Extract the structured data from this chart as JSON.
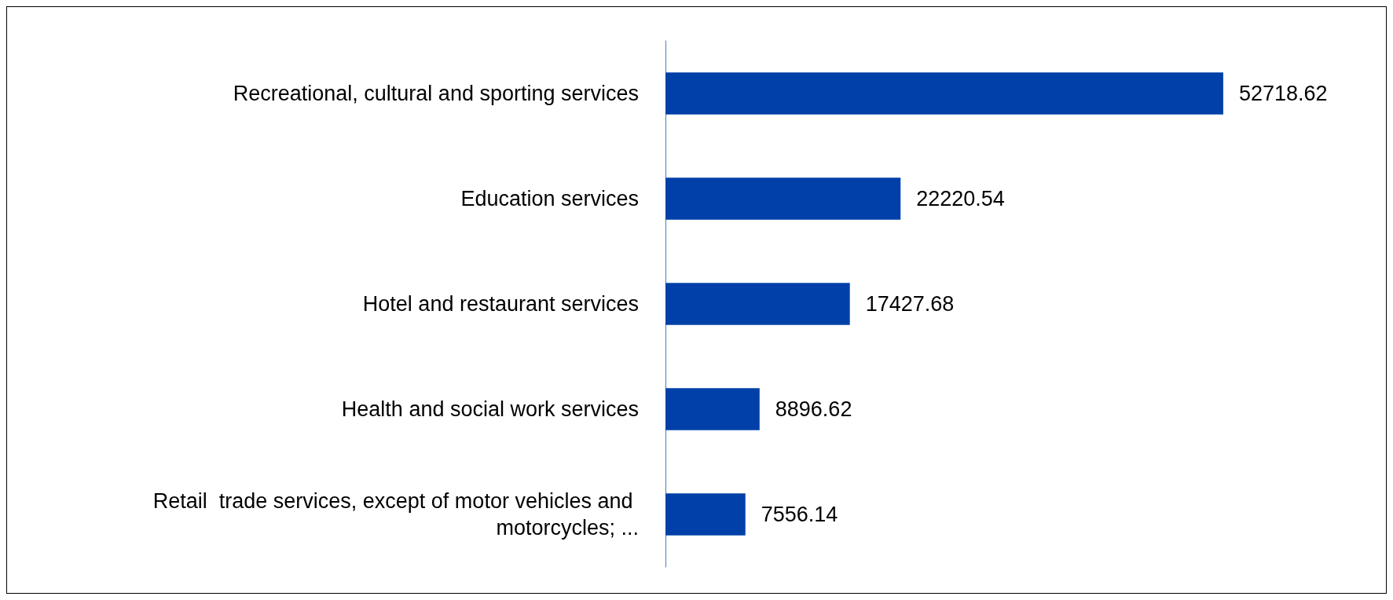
{
  "chart_data": {
    "type": "bar",
    "orientation": "horizontal",
    "categories": [
      "Recreational, cultural and sporting services",
      "Education services",
      "Hotel and restaurant services",
      "Health and social work services",
      "Retail  trade services, except of motor vehicles and motorcycles; ..."
    ],
    "values": [
      52718.62,
      22220.54,
      17427.68,
      8896.62,
      7556.14
    ],
    "color": "#0040a8",
    "data_labels": true
  }
}
